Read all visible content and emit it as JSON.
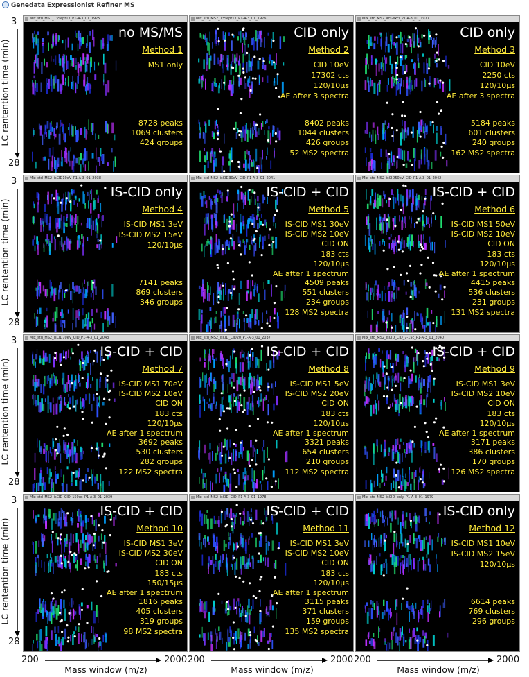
{
  "app_title": "Genedata Expressionist Refiner MS",
  "y_axis": {
    "label": "LC rentention time (min)",
    "top": "3",
    "bottom": "28"
  },
  "x_axis": {
    "label": "Mass window (m/z)",
    "left": "200",
    "right": "2000"
  },
  "panels": [
    {
      "file": "Mix_std_MS1_13Sept17_P1-A-3_01_1975",
      "heading": "no MS/MS",
      "method": "Method 1",
      "settings": [
        "MS1 only"
      ],
      "results": [
        "8728 peaks",
        "1069 clusters",
        "424 groups"
      ]
    },
    {
      "file": "Mix_std_MS2_13Sept17_P1-A-3_01_1976",
      "heading": "CID only",
      "method": "Method 2",
      "settings": [
        "CID 10eV",
        "17302 cts",
        "120/10µs",
        "AE after 3 spectra"
      ],
      "results": [
        "8402 peaks",
        "1044 clusters",
        "426 groups",
        "52 MS2 spectra"
      ]
    },
    {
      "file": "Mix_std_MS2_act-excl_P1-A-3_01_1977",
      "heading": "CID only",
      "method": "Method 3",
      "settings": [
        "CID 10eV",
        "2250 cts",
        "120/10µs",
        "AE after 3 spectra"
      ],
      "results": [
        "5184 peaks",
        "601 clusters",
        "240 groups",
        "162 MS2 spectra"
      ]
    },
    {
      "file": "Mix_std_MS2_isCID10eV_P1-A-3_01_2038",
      "heading": "IS-CID only",
      "method": "Method 4",
      "settings": [
        "IS-CID MS1 3eV",
        "IS-CID MS2 15eV",
        "120/10µs"
      ],
      "results": [
        "7141 peaks",
        "869 clusters",
        "346 groups"
      ]
    },
    {
      "file": "Mix_std_MS2_isCID30eV_CID_P1-A-3_01_2041",
      "heading": "IS-CID + CID",
      "method": "Method 5",
      "settings": [
        "IS-CID MS1 30eV",
        "IS-CID MS2 10eV",
        "CID ON",
        "183 cts",
        "120/10µs",
        "AE after 1 spectrum"
      ],
      "results": [
        "4509 peaks",
        "551 clusters",
        "234 groups",
        "128 MS2 spectra"
      ]
    },
    {
      "file": "Mix_std_MS2_isCID50eV_CID_P1-A-3_01_2042",
      "heading": "IS-CID + CID",
      "method": "Method 6",
      "settings": [
        "IS-CID MS1 50eV",
        "IS-CID MS2 10eV",
        "CID ON",
        "183 cts",
        "120/10µs",
        "AE after 1 spectrum"
      ],
      "results": [
        "4415 peaks",
        "536 clusters",
        "231 groups",
        "131 MS2 spectra"
      ]
    },
    {
      "file": "Mix_std_MS2_isCID70eV_CID_P1-A-3_01_2043",
      "heading": "IS-CID + CID",
      "method": "Method 7",
      "settings": [
        "IS-CID MS1 70eV",
        "IS-CID MS2 10eV",
        "CID ON",
        "183 cts",
        "120/10µs",
        "AE after 1 spectrum"
      ],
      "results": [
        "3692 peaks",
        "530 clusters",
        "282 groups",
        "122 MS2 spectra"
      ]
    },
    {
      "file": "Mix_std_MS2_isCID_CID20_P1-A-3_01_2037",
      "heading": "IS-CID + CID",
      "method": "Method 8",
      "settings": [
        "IS-CID MS1 5eV",
        "IS-CID MS2 20eV",
        "CID ON",
        "183 cts",
        "120/10µs",
        "AE after 1 spectrum"
      ],
      "results": [
        "3321 peaks",
        "654 clusters",
        "210 groups",
        "112 MS2 spectra"
      ]
    },
    {
      "file": "Mix_std_MS2_isCID_CID_7-15c_P1-A-3_01_2040",
      "heading": "IS-CID + CID",
      "method": "Method 9",
      "settings": [
        "IS-CID MS1 3eV",
        "IS-CID MS2 10eV",
        "CID ON",
        "183 cts",
        "120/10µs",
        "AE after 1 spectrum"
      ],
      "results": [
        "3171 peaks",
        "386 clusters",
        "170 groups",
        "126 MS2 spectra"
      ]
    },
    {
      "file": "Mix_std_MS2_isCID_CID_150us_P1-A-3_01_2039",
      "heading": "IS-CID + CID",
      "method": "Method 10",
      "settings": [
        "IS-CID MS1 3eV",
        "IS-CID MS2 30eV",
        "CID ON",
        "183 cts",
        "150/15µs",
        "AE after 1 spectrum"
      ],
      "results": [
        "1816 peaks",
        "405 clusters",
        "319 groups",
        "98 MS2 spectra"
      ]
    },
    {
      "file": "Mix_std_MS2_isCID_CID_P1-A-3_01_1978",
      "heading": "IS-CID + CID",
      "method": "Method 11",
      "settings": [
        "IS-CID MS1 3eV",
        "IS-CID MS2 10eV",
        "CID ON",
        "183 cts",
        "120/10µs",
        "AE after 1 spectrum"
      ],
      "results": [
        "3115 peaks",
        "371 clusters",
        "159 groups",
        "135 MS2 spectra"
      ]
    },
    {
      "file": "Mix_std_MS2_isCID_only_P1-A-3_01_1979",
      "heading": "IS-CID only",
      "method": "Method 12",
      "settings": [
        "IS-CID MS1 10eV",
        "IS-CID MS2 15eV",
        "120/10µs"
      ],
      "results": [
        "6614 peaks",
        "769 clusters",
        "296 groups"
      ]
    }
  ]
}
